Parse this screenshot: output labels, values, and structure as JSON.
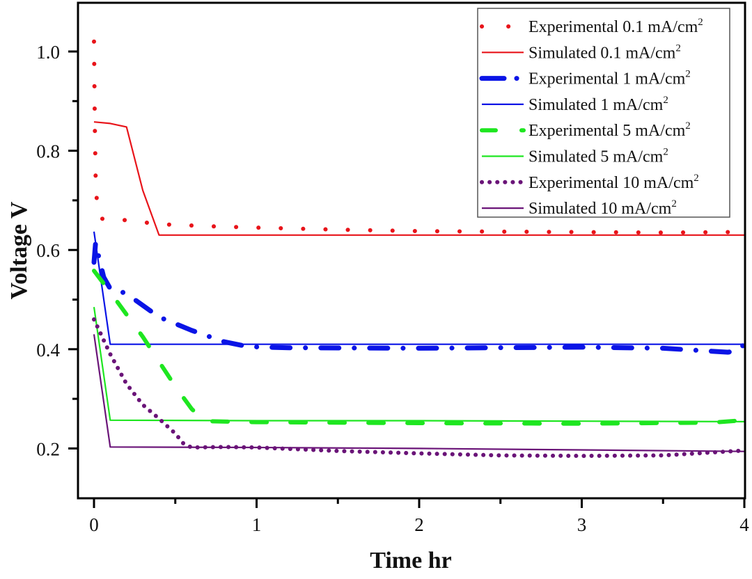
{
  "chart_data": {
    "type": "line",
    "title": "",
    "xlabel": "Time hr",
    "ylabel": "Voltage V",
    "xlim": [
      -0.1,
      4.01
    ],
    "ylim": [
      0.095,
      1.095
    ],
    "xticks": [
      0,
      1,
      2,
      3,
      4
    ],
    "xtick_labels": [
      "0",
      "1",
      "2",
      "3",
      "4"
    ],
    "x_minor_ticks": [
      0.5,
      1.5,
      2.5,
      3.5
    ],
    "yticks": [
      0.2,
      0.4,
      0.6,
      0.8,
      1.0
    ],
    "ytick_labels": [
      "0.2",
      "0.4",
      "0.6",
      "0.8",
      "1.0"
    ],
    "y_minor_ticks": [
      0.3,
      0.5,
      0.7,
      0.9
    ],
    "grid": false,
    "legend_position": "top-right",
    "series": [
      {
        "name": "Experimental 0.1 mA/cm2",
        "label_main": "Experimental 0.1 mA/cm",
        "label_sup": "2",
        "color": "#e8141a",
        "style": "dot",
        "x": [
          0,
          0.002,
          0.005,
          0.01,
          0.02,
          0.05,
          0.1,
          0.2,
          0.4,
          0.7,
          1.0,
          1.5,
          2.0,
          2.5,
          3.0,
          3.5,
          3.9,
          4.0
        ],
        "y": [
          1.02,
          0.95,
          0.85,
          0.75,
          0.68,
          0.663,
          0.662,
          0.66,
          0.652,
          0.648,
          0.645,
          0.641,
          0.638,
          0.637,
          0.636,
          0.635,
          0.636,
          0.645
        ]
      },
      {
        "name": "Simulated 0.1 mA/cm2",
        "label_main": "Simulated 0.1 mA/cm",
        "label_sup": "2",
        "color": "#e8141a",
        "style": "solid",
        "x": [
          0,
          0.1,
          0.2,
          0.3,
          0.4,
          1.0,
          2.0,
          3.0,
          4.0
        ],
        "y": [
          0.858,
          0.855,
          0.848,
          0.72,
          0.63,
          0.63,
          0.63,
          0.63,
          0.63
        ]
      },
      {
        "name": "Experimental 1 mA/cm2",
        "label_main": "Experimental 1 mA/cm",
        "label_sup": "2",
        "color": "#0a14e6",
        "style": "dashdot",
        "x": [
          0,
          0.01,
          0.03,
          0.06,
          0.1,
          0.15,
          0.25,
          0.4,
          0.6,
          0.8,
          0.95,
          1.2,
          2.0,
          3.0,
          3.5,
          3.8,
          3.9,
          3.96,
          4.0
        ],
        "y": [
          0.575,
          0.615,
          0.585,
          0.545,
          0.522,
          0.52,
          0.5,
          0.465,
          0.438,
          0.415,
          0.405,
          0.403,
          0.402,
          0.404,
          0.402,
          0.396,
          0.394,
          0.398,
          0.41
        ]
      },
      {
        "name": "Simulated 1 mA/cm2",
        "label_main": "Simulated 1 mA/cm",
        "label_sup": "2",
        "color": "#0a14e6",
        "style": "solid",
        "x": [
          0,
          0.1,
          1.0,
          2.0,
          3.0,
          4.0
        ],
        "y": [
          0.637,
          0.41,
          0.41,
          0.41,
          0.41,
          0.41
        ]
      },
      {
        "name": "Experimental 5 mA/cm2",
        "label_main": "Experimental 5 mA/cm",
        "label_sup": "2",
        "color": "#1ee620",
        "style": "dash",
        "x": [
          0,
          0.1,
          0.2,
          0.3,
          0.4,
          0.5,
          0.6,
          0.68,
          1.0,
          2.0,
          3.0,
          3.8,
          4.0
        ],
        "y": [
          0.558,
          0.515,
          0.47,
          0.425,
          0.375,
          0.325,
          0.28,
          0.255,
          0.253,
          0.251,
          0.25,
          0.252,
          0.257
        ]
      },
      {
        "name": "Simulated 5 mA/cm2",
        "label_main": "Simulated 5 mA/cm",
        "label_sup": "2",
        "color": "#1ee620",
        "style": "solid",
        "x": [
          0,
          0.1,
          1.0,
          2.0,
          3.0,
          4.0
        ],
        "y": [
          0.485,
          0.257,
          0.256,
          0.256,
          0.255,
          0.254
        ]
      },
      {
        "name": "Experimental 10 mA/cm2",
        "label_main": "Experimental 10 mA/cm",
        "label_sup": "2",
        "color": "#6a1478",
        "style": "dot",
        "x": [
          0,
          0.1,
          0.2,
          0.3,
          0.4,
          0.5,
          0.55,
          0.6,
          0.8,
          1.0,
          1.5,
          2.0,
          2.5,
          3.0,
          3.5,
          4.0
        ],
        "y": [
          0.46,
          0.39,
          0.33,
          0.288,
          0.26,
          0.23,
          0.21,
          0.202,
          0.203,
          0.202,
          0.195,
          0.19,
          0.186,
          0.185,
          0.186,
          0.196
        ]
      },
      {
        "name": "Simulated 10 mA/cm2",
        "label_main": "Simulated 10 mA/cm",
        "label_sup": "2",
        "color": "#6a1478",
        "style": "solid",
        "x": [
          0,
          0.1,
          1.0,
          2.0,
          3.0,
          4.0
        ],
        "y": [
          0.43,
          0.203,
          0.202,
          0.2,
          0.197,
          0.194
        ]
      }
    ]
  }
}
